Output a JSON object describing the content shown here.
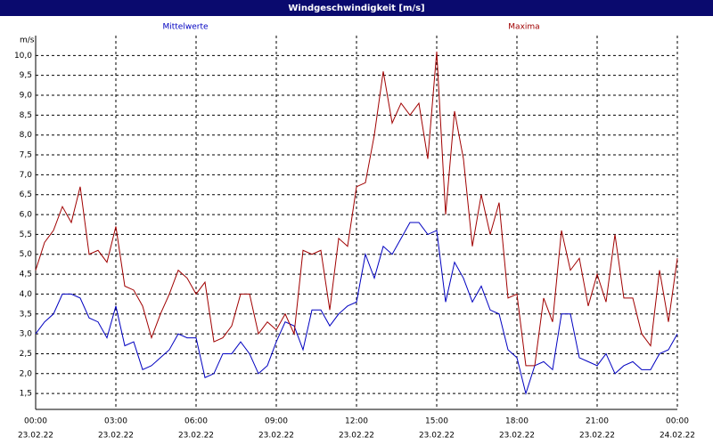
{
  "chart_data": {
    "type": "line",
    "title": "Windgeschwindigkeit [m/s]",
    "y_unit": "m/s",
    "x": [
      0,
      20,
      40,
      60,
      80,
      100,
      120,
      140,
      160,
      180,
      200,
      220,
      240,
      260,
      280,
      300,
      320,
      340,
      360,
      380,
      400,
      420,
      440,
      460,
      480,
      500,
      520,
      540,
      560,
      580,
      600,
      620,
      640,
      660,
      680,
      700,
      720,
      740,
      760,
      780,
      800,
      820,
      840,
      860,
      880,
      900,
      920,
      940,
      960,
      980,
      1000,
      1020,
      1040,
      1060,
      1080,
      1100,
      1120,
      1140,
      1160,
      1180,
      1200,
      1220,
      1240,
      1260,
      1280,
      1300,
      1320,
      1340,
      1360,
      1380,
      1400,
      1420,
      1440
    ],
    "series": [
      {
        "name": "Mittelwerte",
        "color": "#0000c0",
        "values": [
          3.0,
          3.3,
          3.5,
          4.0,
          4.0,
          3.9,
          3.4,
          3.3,
          2.9,
          3.7,
          2.7,
          2.8,
          2.1,
          2.2,
          2.4,
          2.6,
          3.0,
          2.9,
          2.9,
          1.9,
          2.0,
          2.5,
          2.5,
          2.8,
          2.5,
          2.0,
          2.2,
          2.8,
          3.3,
          3.2,
          2.6,
          3.6,
          3.6,
          3.2,
          3.5,
          3.7,
          3.8,
          5.0,
          4.4,
          5.2,
          5.0,
          5.4,
          5.8,
          5.8,
          5.5,
          5.6,
          3.8,
          4.8,
          4.4,
          3.8,
          4.2,
          3.6,
          3.5,
          2.6,
          2.4,
          1.5,
          2.2,
          2.3,
          2.1,
          3.5,
          3.5,
          2.4,
          2.3,
          2.2,
          2.5,
          2.0,
          2.2,
          2.3,
          2.1,
          2.1,
          2.5,
          2.6,
          3.0
        ]
      },
      {
        "name": "Maxima",
        "color": "#a00000",
        "values": [
          4.6,
          5.3,
          5.6,
          6.2,
          5.8,
          6.7,
          5.0,
          5.1,
          4.8,
          5.7,
          4.2,
          4.1,
          3.7,
          2.9,
          3.5,
          4.0,
          4.6,
          4.4,
          4.0,
          4.3,
          2.8,
          2.9,
          3.2,
          4.0,
          4.0,
          3.0,
          3.3,
          3.1,
          3.5,
          3.0,
          5.1,
          5.0,
          5.1,
          3.6,
          5.4,
          5.2,
          6.7,
          6.8,
          8.0,
          9.6,
          8.3,
          8.8,
          8.5,
          8.8,
          7.4,
          10.1,
          6.0,
          8.6,
          7.4,
          5.2,
          6.5,
          5.5,
          6.3,
          3.9,
          4.0,
          2.2,
          2.2,
          3.9,
          3.3,
          5.6,
          4.6,
          4.9,
          3.7,
          4.5,
          3.8,
          5.5,
          3.9,
          3.9,
          3.0,
          2.7,
          4.6,
          3.3,
          4.9
        ]
      }
    ],
    "xlim": [
      0,
      1440
    ],
    "xticks": [
      {
        "value": 0,
        "label": "00:00"
      },
      {
        "value": 180,
        "label": "03:00"
      },
      {
        "value": 360,
        "label": "06:00"
      },
      {
        "value": 540,
        "label": "09:00"
      },
      {
        "value": 720,
        "label": "12:00"
      },
      {
        "value": 900,
        "label": "15:00"
      },
      {
        "value": 1080,
        "label": "18:00"
      },
      {
        "value": 1260,
        "label": "21:00"
      },
      {
        "value": 1440,
        "label": "00:00"
      }
    ],
    "xtick_dates": [
      "23.02.22",
      "23.02.22",
      "23.02.22",
      "23.02.22",
      "23.02.22",
      "23.02.22",
      "23.02.22",
      "23.02.22",
      "24.02.22"
    ],
    "ylim": [
      1.1,
      10.5
    ],
    "yticks": [
      {
        "value": 1.5,
        "label": "1,5"
      },
      {
        "value": 2.0,
        "label": "2,0"
      },
      {
        "value": 2.5,
        "label": "2,5"
      },
      {
        "value": 3.0,
        "label": "3,0"
      },
      {
        "value": 3.5,
        "label": "3,5"
      },
      {
        "value": 4.0,
        "label": "4,0"
      },
      {
        "value": 4.5,
        "label": "4,5"
      },
      {
        "value": 5.0,
        "label": "5,0"
      },
      {
        "value": 5.5,
        "label": "5,5"
      },
      {
        "value": 6.0,
        "label": "6,0"
      },
      {
        "value": 6.5,
        "label": "6,5"
      },
      {
        "value": 7.0,
        "label": "7,0"
      },
      {
        "value": 7.5,
        "label": "7,5"
      },
      {
        "value": 8.0,
        "label": "8,0"
      },
      {
        "value": 8.5,
        "label": "8,5"
      },
      {
        "value": 9.0,
        "label": "9,0"
      },
      {
        "value": 9.5,
        "label": "9,5"
      },
      {
        "value": 10.0,
        "label": "10,0"
      }
    ],
    "grid": true
  }
}
